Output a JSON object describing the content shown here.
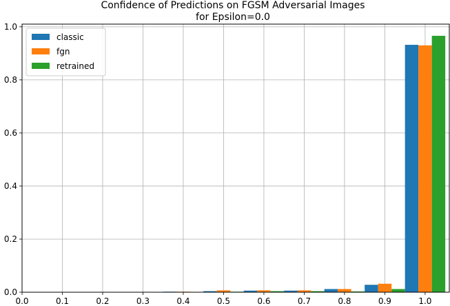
{
  "chart_data": {
    "type": "bar",
    "title": "Confidence of Predictions on FGSM Adversarial Images",
    "subtitle": "for Epsilon=0.0",
    "xlabel": "",
    "ylabel": "",
    "xlim": [
      0.0,
      1.06
    ],
    "ylim": [
      0.0,
      1.01
    ],
    "xticks": [
      "0.0",
      "0.1",
      "0.2",
      "0.3",
      "0.4",
      "0.5",
      "0.6",
      "0.7",
      "0.8",
      "0.9",
      "1.0"
    ],
    "yticks": [
      "0.0",
      "0.2",
      "0.4",
      "0.6",
      "0.8",
      "1.0"
    ],
    "grid": true,
    "legend_position": "top-left",
    "bin_width": 0.1,
    "categories": [
      "0.4",
      "0.5",
      "0.6",
      "0.7",
      "0.8",
      "0.9",
      "1.0"
    ],
    "series": [
      {
        "name": "classic",
        "color": "#1f77b4",
        "values": [
          0.002,
          0.004,
          0.006,
          0.006,
          0.012,
          0.028,
          0.932
        ]
      },
      {
        "name": "fgn",
        "color": "#ff7f0e",
        "values": [
          0.002,
          0.007,
          0.007,
          0.007,
          0.012,
          0.032,
          0.93
        ]
      },
      {
        "name": "retrained",
        "color": "#2ca02c",
        "values": [
          0.001,
          0.002,
          0.004,
          0.004,
          0.003,
          0.012,
          0.966
        ]
      }
    ]
  }
}
